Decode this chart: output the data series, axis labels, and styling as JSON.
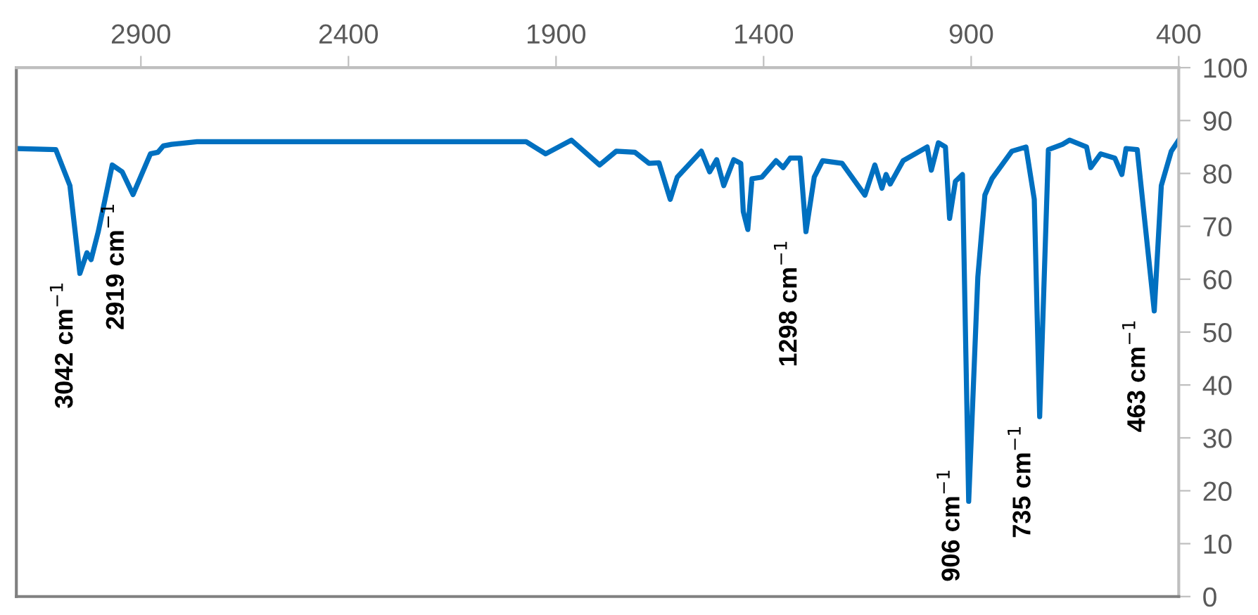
{
  "chart_data": {
    "type": "line",
    "x": [
      3197,
      3105,
      3071,
      3047,
      3030,
      3020,
      3003,
      2969,
      2945,
      2919,
      2877,
      2859,
      2846,
      2826,
      2765,
      2500,
      2300,
      2100,
      1972,
      1925,
      1863,
      1795,
      1755,
      1710,
      1676,
      1652,
      1625,
      1608,
      1550,
      1530,
      1513,
      1496,
      1472,
      1455,
      1449,
      1438,
      1428,
      1404,
      1370,
      1353,
      1336,
      1312,
      1298,
      1278,
      1258,
      1211,
      1156,
      1132,
      1115,
      1105,
      1095,
      1064,
      1006,
      996,
      979,
      962,
      952,
      938,
      921,
      906,
      884,
      867,
      850,
      802,
      768,
      748,
      735,
      714,
      680,
      663,
      622,
      612,
      588,
      554,
      537,
      527,
      500,
      459,
      442,
      418,
      400
    ],
    "series": [
      {
        "color": "#0070c0",
        "values": [
          84.7,
          84.5,
          77.7,
          61.1,
          65,
          63.7,
          68.9,
          81.6,
          80.3,
          76,
          83.7,
          84,
          85.2,
          85.5,
          86,
          86,
          86,
          86,
          86,
          83.7,
          86.3,
          81.6,
          84.2,
          84,
          81.9,
          82,
          75.1,
          79.3,
          84.2,
          80.3,
          82.6,
          77.7,
          82.6,
          81.9,
          72.8,
          69.4,
          79,
          79.3,
          82.4,
          81.1,
          82.9,
          82.9,
          69,
          79.3,
          82.4,
          81.9,
          75.9,
          81.6,
          77.2,
          79.8,
          78,
          82.4,
          85,
          80.6,
          85.8,
          85,
          71.5,
          78.5,
          79.8,
          18,
          60.4,
          75.9,
          79,
          84.2,
          85,
          75.1,
          34,
          84.5,
          85.5,
          86.3,
          85,
          81.1,
          83.7,
          82.9,
          79.8,
          84.7,
          84.5,
          54,
          77.7,
          84.2,
          86.3
        ]
      }
    ],
    "xlim": [
      3200,
      400
    ],
    "xticks": [
      2900,
      2400,
      1900,
      1400,
      900,
      400
    ],
    "ylim": [
      0,
      100
    ],
    "yticks": [
      0,
      10,
      20,
      30,
      40,
      50,
      60,
      70,
      80,
      90,
      100
    ],
    "grid": false,
    "marker": "none",
    "line_style": "solid",
    "annotations": [
      {
        "text": "3042 cm$^{−1}$",
        "x": 3042,
        "y": 61.1
      },
      {
        "text": "2919 cm$^{−1}$",
        "x": 2919,
        "y": 76
      },
      {
        "text": "1298 cm$^{−1}$",
        "x": 1298,
        "y": 69
      },
      {
        "text": "906 cm$^{−1}$",
        "x": 906,
        "y": 18
      },
      {
        "text": "735 cm$^{−1}$",
        "x": 735,
        "y": 34
      },
      {
        "text": "463 cm$^{−1}$",
        "x": 459,
        "y": 54
      }
    ]
  }
}
